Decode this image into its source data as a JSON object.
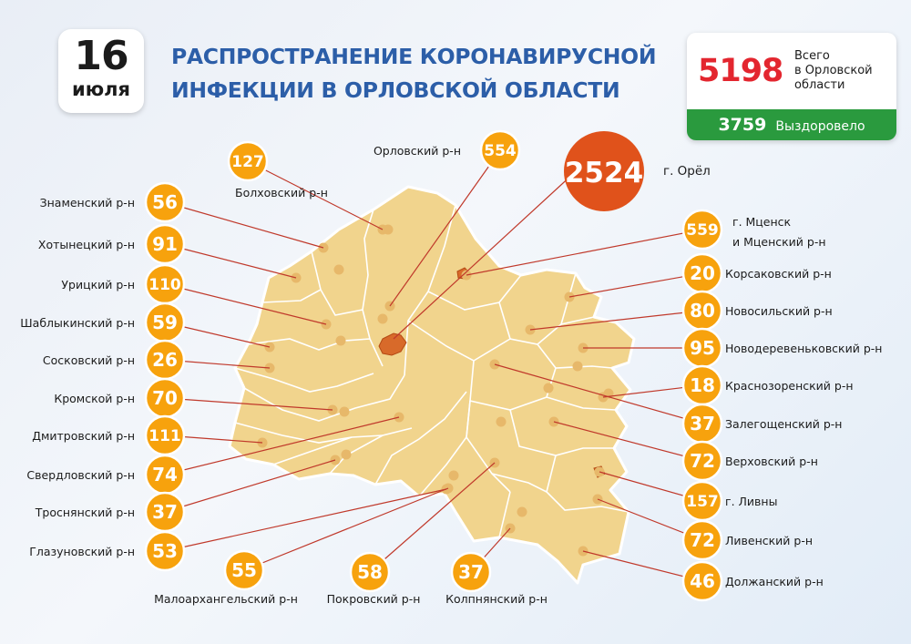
{
  "date": {
    "day": "16",
    "month": "июля"
  },
  "title": {
    "line1": "РАСПРОСТРАНЕНИЕ КОРОНАВИРУСНОЙ",
    "line2": "ИНФЕКЦИИ В ОРЛОВСКОЙ ОБЛАСТИ"
  },
  "totals": {
    "total": "5198",
    "total_label_1": "Всего",
    "total_label_2": "в Орловской",
    "total_label_3": "области",
    "recovered": "3759",
    "recovered_label": "Выздоровело"
  },
  "colors": {
    "badge": "#f7a20d",
    "city_circle": "#e0521b",
    "map_fill": "#f1d48d",
    "title": "#2c5ea8",
    "total": "#e3262f",
    "recovered": "#2a9a3e"
  },
  "city": {
    "value": "2524",
    "label": "г. Орёл"
  },
  "districts": [
    {
      "id": "znamensky",
      "value": "56",
      "label": "Знаменский р-н"
    },
    {
      "id": "khotynetsky",
      "value": "91",
      "label": "Хотынецкий р-н"
    },
    {
      "id": "uritsky",
      "value": "110",
      "label": "Урицкий р-н"
    },
    {
      "id": "shablykinsky",
      "value": "59",
      "label": "Шаблыкинский р-н"
    },
    {
      "id": "sosokovsky",
      "value": "26",
      "label": "Сосковский р-н"
    },
    {
      "id": "kromskoy",
      "value": "70",
      "label": "Кромской р-н"
    },
    {
      "id": "dmitrovsky",
      "value": "111",
      "label": "Дмитровский р-н"
    },
    {
      "id": "sverdlovsky",
      "value": "74",
      "label": "Свердловский р-н"
    },
    {
      "id": "trosnyansky",
      "value": "37",
      "label": "Троснянский р-н"
    },
    {
      "id": "glazunovsky",
      "value": "53",
      "label": "Глазуновский р-н"
    },
    {
      "id": "bolkhovsky",
      "value": "127",
      "label": "Болховский р-н"
    },
    {
      "id": "orlovsky",
      "value": "554",
      "label": "Орловский р-н"
    },
    {
      "id": "mtsensk",
      "value": "559",
      "label": "г. Мценск",
      "label2": "и Мценский р-н"
    },
    {
      "id": "korsakovsky",
      "value": "20",
      "label": "Корсаковский р-н"
    },
    {
      "id": "novosilsky",
      "value": "80",
      "label": "Новосильский р-н"
    },
    {
      "id": "novoderevenkovsky",
      "value": "95",
      "label": "Новодеревеньковский р-н"
    },
    {
      "id": "krasnozorensky",
      "value": "18",
      "label": "Краснозоренский р-н"
    },
    {
      "id": "zalegoshchensky",
      "value": "37",
      "label": "Залегощенский р-н"
    },
    {
      "id": "verkhovsky",
      "value": "72",
      "label": "Верховский р-н"
    },
    {
      "id": "livny",
      "value": "157",
      "label": "г. Ливны"
    },
    {
      "id": "livensky",
      "value": "72",
      "label": "Ливенский р-н"
    },
    {
      "id": "dolzhansky",
      "value": "46",
      "label": "Должанский р-н"
    },
    {
      "id": "maloarkhangelsky",
      "value": "55",
      "label": "Малоархангельский р-н"
    },
    {
      "id": "pokrovsky",
      "value": "58",
      "label": "Покровский р-н"
    },
    {
      "id": "kolpnyansky",
      "value": "37",
      "label": "Колпнянский р-н"
    }
  ]
}
